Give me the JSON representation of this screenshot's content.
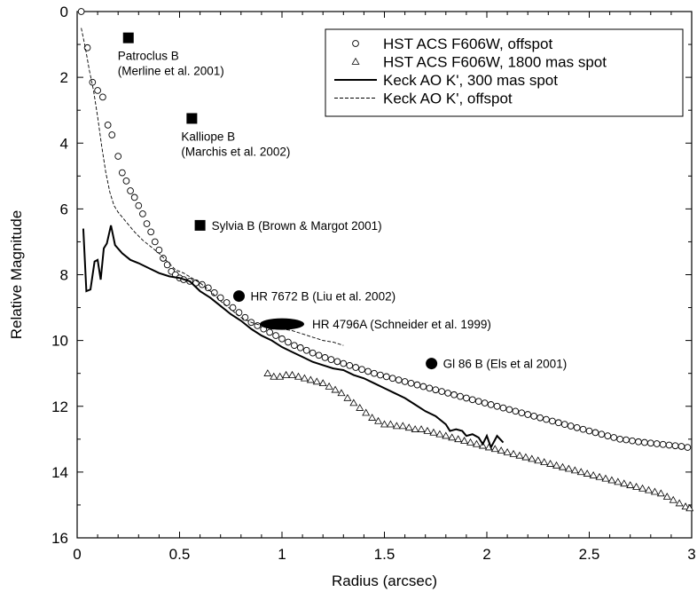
{
  "chart_data": {
    "type": "scatter",
    "xlabel": "Radius (arcsec)",
    "ylabel": "Relative Magnitude",
    "xlim": [
      0,
      3
    ],
    "ylim": [
      16,
      0
    ],
    "y_inverted": true,
    "grid": false,
    "legend_position": "top-right",
    "x_ticks": [
      "0",
      "0.5",
      "1",
      "1.5",
      "2",
      "2.5",
      "3"
    ],
    "y_ticks": [
      "0",
      "2",
      "4",
      "6",
      "8",
      "10",
      "12",
      "14",
      "16"
    ],
    "series": [
      {
        "name": "HST ACS F606W, offspot",
        "style": "open-circle",
        "points": [
          [
            0.02,
            0.0
          ],
          [
            0.05,
            1.1
          ],
          [
            0.075,
            2.15
          ],
          [
            0.1,
            2.4
          ],
          [
            0.125,
            2.6
          ],
          [
            0.15,
            3.45
          ],
          [
            0.17,
            3.75
          ],
          [
            0.2,
            4.4
          ],
          [
            0.22,
            4.9
          ],
          [
            0.24,
            5.15
          ],
          [
            0.26,
            5.45
          ],
          [
            0.28,
            5.65
          ],
          [
            0.3,
            5.9
          ],
          [
            0.32,
            6.15
          ],
          [
            0.34,
            6.45
          ],
          [
            0.36,
            6.7
          ],
          [
            0.38,
            7.0
          ],
          [
            0.4,
            7.25
          ],
          [
            0.42,
            7.5
          ],
          [
            0.44,
            7.7
          ],
          [
            0.46,
            7.9
          ],
          [
            0.48,
            8.0
          ],
          [
            0.5,
            8.1
          ],
          [
            0.52,
            8.15
          ],
          [
            0.55,
            8.2
          ],
          [
            0.58,
            8.25
          ],
          [
            0.61,
            8.3
          ],
          [
            0.64,
            8.4
          ],
          [
            0.67,
            8.55
          ],
          [
            0.7,
            8.7
          ],
          [
            0.73,
            8.85
          ],
          [
            0.76,
            9.0
          ],
          [
            0.79,
            9.15
          ],
          [
            0.82,
            9.3
          ],
          [
            0.85,
            9.45
          ],
          [
            0.88,
            9.55
          ],
          [
            0.91,
            9.65
          ],
          [
            0.94,
            9.75
          ],
          [
            0.97,
            9.85
          ],
          [
            1.0,
            9.95
          ],
          [
            1.03,
            10.05
          ],
          [
            1.06,
            10.15
          ],
          [
            1.09,
            10.22
          ],
          [
            1.12,
            10.3
          ],
          [
            1.15,
            10.38
          ],
          [
            1.18,
            10.45
          ],
          [
            1.21,
            10.52
          ],
          [
            1.24,
            10.58
          ],
          [
            1.27,
            10.64
          ],
          [
            1.3,
            10.7
          ],
          [
            1.33,
            10.76
          ],
          [
            1.36,
            10.82
          ],
          [
            1.39,
            10.88
          ],
          [
            1.42,
            10.94
          ],
          [
            1.45,
            11.0
          ],
          [
            1.48,
            11.05
          ],
          [
            1.51,
            11.1
          ],
          [
            1.54,
            11.15
          ],
          [
            1.57,
            11.2
          ],
          [
            1.6,
            11.25
          ],
          [
            1.63,
            11.3
          ],
          [
            1.66,
            11.35
          ],
          [
            1.69,
            11.4
          ],
          [
            1.72,
            11.45
          ],
          [
            1.75,
            11.5
          ],
          [
            1.78,
            11.55
          ],
          [
            1.81,
            11.6
          ],
          [
            1.84,
            11.65
          ],
          [
            1.87,
            11.7
          ],
          [
            1.9,
            11.75
          ],
          [
            1.93,
            11.8
          ],
          [
            1.96,
            11.85
          ],
          [
            1.99,
            11.9
          ],
          [
            2.02,
            11.95
          ],
          [
            2.05,
            12.0
          ],
          [
            2.08,
            12.05
          ],
          [
            2.11,
            12.1
          ],
          [
            2.14,
            12.15
          ],
          [
            2.17,
            12.2
          ],
          [
            2.2,
            12.25
          ],
          [
            2.23,
            12.3
          ],
          [
            2.26,
            12.35
          ],
          [
            2.29,
            12.4
          ],
          [
            2.32,
            12.45
          ],
          [
            2.35,
            12.5
          ],
          [
            2.38,
            12.55
          ],
          [
            2.41,
            12.6
          ],
          [
            2.44,
            12.65
          ],
          [
            2.47,
            12.7
          ],
          [
            2.5,
            12.75
          ],
          [
            2.53,
            12.8
          ],
          [
            2.56,
            12.85
          ],
          [
            2.59,
            12.9
          ],
          [
            2.62,
            12.95
          ],
          [
            2.65,
            13.0
          ],
          [
            2.68,
            13.02
          ],
          [
            2.71,
            13.05
          ],
          [
            2.74,
            13.08
          ],
          [
            2.77,
            13.1
          ],
          [
            2.8,
            13.12
          ],
          [
            2.83,
            13.14
          ],
          [
            2.86,
            13.16
          ],
          [
            2.89,
            13.18
          ],
          [
            2.92,
            13.2
          ],
          [
            2.95,
            13.22
          ],
          [
            2.98,
            13.25
          ]
        ]
      },
      {
        "name": "HST ACS F606W, 1800 mas spot",
        "style": "open-triangle",
        "points": [
          [
            0.93,
            11.0
          ],
          [
            0.96,
            11.1
          ],
          [
            0.99,
            11.1
          ],
          [
            1.02,
            11.05
          ],
          [
            1.05,
            11.05
          ],
          [
            1.08,
            11.1
          ],
          [
            1.11,
            11.15
          ],
          [
            1.14,
            11.2
          ],
          [
            1.17,
            11.25
          ],
          [
            1.2,
            11.3
          ],
          [
            1.23,
            11.4
          ],
          [
            1.26,
            11.5
          ],
          [
            1.29,
            11.6
          ],
          [
            1.32,
            11.75
          ],
          [
            1.35,
            11.9
          ],
          [
            1.38,
            12.05
          ],
          [
            1.41,
            12.2
          ],
          [
            1.44,
            12.35
          ],
          [
            1.47,
            12.45
          ],
          [
            1.5,
            12.55
          ],
          [
            1.53,
            12.55
          ],
          [
            1.56,
            12.6
          ],
          [
            1.59,
            12.6
          ],
          [
            1.62,
            12.65
          ],
          [
            1.65,
            12.7
          ],
          [
            1.68,
            12.7
          ],
          [
            1.71,
            12.75
          ],
          [
            1.74,
            12.8
          ],
          [
            1.77,
            12.85
          ],
          [
            1.8,
            12.9
          ],
          [
            1.83,
            12.95
          ],
          [
            1.86,
            13.0
          ],
          [
            1.89,
            13.05
          ],
          [
            1.92,
            13.1
          ],
          [
            1.95,
            13.15
          ],
          [
            1.98,
            13.2
          ],
          [
            2.01,
            13.25
          ],
          [
            2.04,
            13.3
          ],
          [
            2.07,
            13.35
          ],
          [
            2.1,
            13.4
          ],
          [
            2.13,
            13.45
          ],
          [
            2.16,
            13.5
          ],
          [
            2.19,
            13.55
          ],
          [
            2.22,
            13.6
          ],
          [
            2.25,
            13.65
          ],
          [
            2.28,
            13.7
          ],
          [
            2.31,
            13.75
          ],
          [
            2.34,
            13.8
          ],
          [
            2.37,
            13.85
          ],
          [
            2.4,
            13.9
          ],
          [
            2.43,
            13.95
          ],
          [
            2.46,
            14.0
          ],
          [
            2.49,
            14.05
          ],
          [
            2.52,
            14.1
          ],
          [
            2.55,
            14.15
          ],
          [
            2.58,
            14.2
          ],
          [
            2.61,
            14.25
          ],
          [
            2.64,
            14.3
          ],
          [
            2.67,
            14.35
          ],
          [
            2.7,
            14.4
          ],
          [
            2.73,
            14.45
          ],
          [
            2.76,
            14.5
          ],
          [
            2.79,
            14.55
          ],
          [
            2.82,
            14.6
          ],
          [
            2.85,
            14.65
          ],
          [
            2.88,
            14.75
          ],
          [
            2.91,
            14.85
          ],
          [
            2.94,
            14.95
          ],
          [
            2.97,
            15.05
          ],
          [
            2.99,
            15.1
          ]
        ]
      },
      {
        "name": "Keck AO K', 300 mas spot",
        "style": "solid-line",
        "points": [
          [
            0.03,
            6.6
          ],
          [
            0.045,
            8.5
          ],
          [
            0.065,
            8.45
          ],
          [
            0.085,
            7.6
          ],
          [
            0.1,
            7.55
          ],
          [
            0.115,
            8.15
          ],
          [
            0.13,
            7.2
          ],
          [
            0.145,
            7.05
          ],
          [
            0.165,
            6.5
          ],
          [
            0.185,
            7.1
          ],
          [
            0.22,
            7.35
          ],
          [
            0.26,
            7.55
          ],
          [
            0.3,
            7.65
          ],
          [
            0.35,
            7.8
          ],
          [
            0.4,
            7.95
          ],
          [
            0.45,
            8.05
          ],
          [
            0.5,
            8.1
          ],
          [
            0.55,
            8.2
          ],
          [
            0.6,
            8.5
          ],
          [
            0.65,
            8.7
          ],
          [
            0.7,
            8.95
          ],
          [
            0.75,
            9.2
          ],
          [
            0.8,
            9.4
          ],
          [
            0.85,
            9.65
          ],
          [
            0.9,
            9.85
          ],
          [
            0.95,
            10.0
          ],
          [
            1.0,
            10.2
          ],
          [
            1.05,
            10.35
          ],
          [
            1.1,
            10.5
          ],
          [
            1.15,
            10.65
          ],
          [
            1.2,
            10.75
          ],
          [
            1.25,
            10.85
          ],
          [
            1.3,
            10.9
          ],
          [
            1.35,
            11.05
          ],
          [
            1.4,
            11.15
          ],
          [
            1.45,
            11.3
          ],
          [
            1.5,
            11.45
          ],
          [
            1.55,
            11.6
          ],
          [
            1.6,
            11.75
          ],
          [
            1.65,
            11.95
          ],
          [
            1.7,
            12.15
          ],
          [
            1.75,
            12.3
          ],
          [
            1.8,
            12.55
          ],
          [
            1.82,
            12.75
          ],
          [
            1.85,
            12.7
          ],
          [
            1.88,
            12.75
          ],
          [
            1.9,
            12.9
          ],
          [
            1.93,
            12.85
          ],
          [
            1.96,
            12.95
          ],
          [
            1.98,
            13.15
          ],
          [
            2.0,
            12.9
          ],
          [
            2.02,
            13.25
          ],
          [
            2.05,
            12.9
          ],
          [
            2.08,
            13.1
          ]
        ]
      },
      {
        "name": "Keck AO K', offspot",
        "style": "dashed-line",
        "points": [
          [
            0.02,
            0.5
          ],
          [
            0.04,
            1.1
          ],
          [
            0.06,
            1.8
          ],
          [
            0.08,
            2.4
          ],
          [
            0.1,
            3.2
          ],
          [
            0.12,
            4.1
          ],
          [
            0.14,
            4.9
          ],
          [
            0.16,
            5.5
          ],
          [
            0.18,
            5.9
          ],
          [
            0.2,
            6.1
          ],
          [
            0.24,
            6.4
          ],
          [
            0.28,
            6.7
          ],
          [
            0.32,
            6.95
          ],
          [
            0.36,
            7.15
          ],
          [
            0.4,
            7.35
          ],
          [
            0.44,
            7.6
          ],
          [
            0.48,
            7.85
          ],
          [
            0.52,
            7.95
          ],
          [
            0.56,
            8.1
          ],
          [
            0.6,
            8.25
          ],
          [
            0.65,
            8.5
          ],
          [
            0.7,
            8.8
          ],
          [
            0.75,
            9.05
          ],
          [
            0.8,
            9.3
          ],
          [
            0.85,
            9.45
          ],
          [
            0.9,
            9.55
          ],
          [
            0.95,
            9.65
          ],
          [
            1.0,
            9.65
          ],
          [
            1.05,
            9.7
          ],
          [
            1.1,
            9.8
          ],
          [
            1.15,
            9.9
          ],
          [
            1.2,
            10.0
          ],
          [
            1.25,
            10.05
          ],
          [
            1.3,
            10.15
          ]
        ]
      }
    ],
    "annotations": [
      {
        "marker": "square",
        "x": 0.25,
        "y": 0.8,
        "label_lines": [
          "Patroclus B",
          "(Merline et al. 2001)"
        ],
        "label_pos": "below"
      },
      {
        "marker": "square",
        "x": 0.56,
        "y": 3.25,
        "label_lines": [
          "Kalliope B",
          "(Marchis et al. 2002)"
        ],
        "label_pos": "below"
      },
      {
        "marker": "square",
        "x": 0.6,
        "y": 6.5,
        "label_lines": [
          "Sylvia B (Brown & Margot 2001)"
        ],
        "label_pos": "right"
      },
      {
        "marker": "circle",
        "x": 0.79,
        "y": 8.65,
        "label_lines": [
          "HR 7672 B (Liu et al. 2002)"
        ],
        "label_pos": "right"
      },
      {
        "marker": "ellipse",
        "x": 1.0,
        "y": 9.5,
        "label_lines": [
          "HR 4796A (Schneider et al. 1999)"
        ],
        "label_pos": "right"
      },
      {
        "marker": "circle",
        "x": 1.73,
        "y": 10.7,
        "label_lines": [
          "Gl 86 B (Els et al 2001)"
        ],
        "label_pos": "right"
      }
    ]
  }
}
